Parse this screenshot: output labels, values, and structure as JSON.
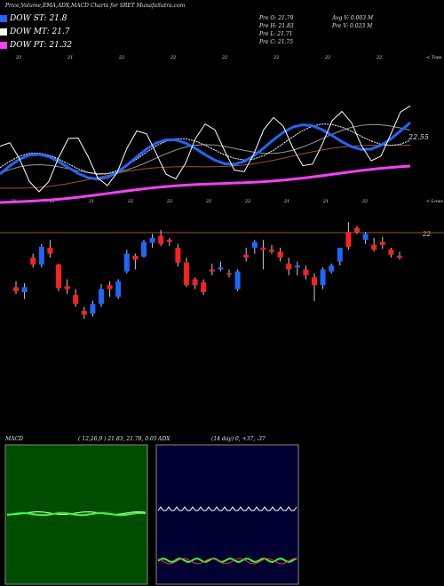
{
  "header": {
    "title": "Price,Volume,EMA,ADX,MACD Charts for SRET MunafaSutra.com"
  },
  "legend": [
    {
      "label": "DOW ST: 21.8",
      "color": "#1f66ff"
    },
    {
      "label": "DOW MT: 21.7",
      "color": "#ffffff"
    },
    {
      "label": "DOW PT: 21.32",
      "color": "#ff3cff"
    }
  ],
  "ohlc": {
    "open": "Pre  O: 21.79",
    "high": "Pre  H: 21.83",
    "low": "Pre  L: 21.71",
    "close": "Pre  C: 21.75",
    "avg_volume": "Avg V: 0.003 M",
    "pre_volume": "Pre  V: 0.023 M"
  },
  "tags": {
    "tops": "< Tops",
    "lows": "< Lows",
    "last_price": "22.55",
    "ref_level": "22",
    "top_marks": [
      "22",
      "21",
      "22",
      "22",
      "22",
      "22",
      "22",
      "22"
    ],
    "low_marks": [
      "21",
      "21",
      "21",
      "22",
      "22",
      "22",
      "22",
      "21",
      "21",
      "22"
    ]
  },
  "macd": {
    "label": "MACD",
    "params": "( 12,26,9 ) 21.83,  21.78,  0.05"
  },
  "adx": {
    "label": "ADX",
    "params": "(14  day) 0,  +37,  -37"
  },
  "colors": {
    "up": "#1f66ff",
    "down": "#ff2020",
    "ema_white": "#ffffff",
    "ema_gray": "#9a9a9a",
    "ema_brown": "#a0522d",
    "ema_purple": "#ff3cff",
    "ref_line": "#8b5a2b",
    "macd_bg": "#004d00",
    "adx_bg": "#000033"
  },
  "chart_data": {
    "type": "line",
    "title": "Price,Volume,EMA,ADX,MACD Charts for SRET MunafaSutra.com",
    "ylabel": "",
    "candles": [
      {
        "o": 21.32,
        "h": 21.38,
        "l": 21.25,
        "c": 21.28,
        "up": false
      },
      {
        "o": 21.27,
        "h": 21.36,
        "l": 21.2,
        "c": 21.32,
        "up": true
      },
      {
        "o": 21.62,
        "h": 21.66,
        "l": 21.52,
        "c": 21.55,
        "up": false
      },
      {
        "o": 21.55,
        "h": 21.76,
        "l": 21.52,
        "c": 21.73,
        "up": true
      },
      {
        "o": 21.72,
        "h": 21.8,
        "l": 21.62,
        "c": 21.66,
        "up": false
      },
      {
        "o": 21.55,
        "h": 21.56,
        "l": 21.28,
        "c": 21.31,
        "up": false
      },
      {
        "o": 21.33,
        "h": 21.4,
        "l": 21.25,
        "c": 21.3,
        "up": false
      },
      {
        "o": 21.24,
        "h": 21.3,
        "l": 21.12,
        "c": 21.15,
        "up": false
      },
      {
        "o": 21.08,
        "h": 21.12,
        "l": 21.0,
        "c": 21.04,
        "up": false
      },
      {
        "o": 21.05,
        "h": 21.18,
        "l": 21.02,
        "c": 21.15,
        "up": true
      },
      {
        "o": 21.15,
        "h": 21.35,
        "l": 21.12,
        "c": 21.3,
        "up": true
      },
      {
        "o": 21.3,
        "h": 21.38,
        "l": 21.22,
        "c": 21.34,
        "up": false
      },
      {
        "o": 21.22,
        "h": 21.4,
        "l": 21.2,
        "c": 21.38,
        "up": true
      },
      {
        "o": 21.48,
        "h": 21.7,
        "l": 21.46,
        "c": 21.66,
        "up": true
      },
      {
        "o": 21.6,
        "h": 21.66,
        "l": 21.5,
        "c": 21.64,
        "up": false
      },
      {
        "o": 21.63,
        "h": 21.8,
        "l": 21.62,
        "c": 21.78,
        "up": true
      },
      {
        "o": 21.77,
        "h": 21.86,
        "l": 21.72,
        "c": 21.82,
        "up": true
      },
      {
        "o": 21.84,
        "h": 21.9,
        "l": 21.74,
        "c": 21.76,
        "up": false
      },
      {
        "o": 21.78,
        "h": 21.82,
        "l": 21.74,
        "c": 21.8,
        "up": false
      },
      {
        "o": 21.72,
        "h": 21.76,
        "l": 21.53,
        "c": 21.57,
        "up": false
      },
      {
        "o": 21.57,
        "h": 21.62,
        "l": 21.32,
        "c": 21.34,
        "up": false
      },
      {
        "o": 21.34,
        "h": 21.42,
        "l": 21.3,
        "c": 21.4,
        "up": false
      },
      {
        "o": 21.37,
        "h": 21.4,
        "l": 21.24,
        "c": 21.27,
        "up": false
      },
      {
        "o": 21.48,
        "h": 21.56,
        "l": 21.44,
        "c": 21.5,
        "up": false
      },
      {
        "o": 21.5,
        "h": 21.58,
        "l": 21.48,
        "c": 21.52,
        "up": true
      },
      {
        "o": 21.46,
        "h": 21.5,
        "l": 21.42,
        "c": 21.46,
        "up": false
      },
      {
        "o": 21.3,
        "h": 21.5,
        "l": 21.28,
        "c": 21.48,
        "up": true
      },
      {
        "o": 21.65,
        "h": 21.72,
        "l": 21.58,
        "c": 21.62,
        "up": false
      },
      {
        "o": 21.72,
        "h": 21.8,
        "l": 21.66,
        "c": 21.78,
        "up": true
      },
      {
        "o": 21.7,
        "h": 21.8,
        "l": 21.5,
        "c": 21.72,
        "up": false
      },
      {
        "o": 21.7,
        "h": 21.75,
        "l": 21.66,
        "c": 21.68,
        "up": false
      },
      {
        "o": 21.68,
        "h": 21.72,
        "l": 21.58,
        "c": 21.62,
        "up": false
      },
      {
        "o": 21.56,
        "h": 21.62,
        "l": 21.44,
        "c": 21.5,
        "up": false
      },
      {
        "o": 21.54,
        "h": 21.58,
        "l": 21.44,
        "c": 21.52,
        "up": true
      },
      {
        "o": 21.5,
        "h": 21.54,
        "l": 21.4,
        "c": 21.44,
        "up": false
      },
      {
        "o": 21.42,
        "h": 21.46,
        "l": 21.18,
        "c": 21.34,
        "up": false
      },
      {
        "o": 21.34,
        "h": 21.52,
        "l": 21.3,
        "c": 21.5,
        "up": true
      },
      {
        "o": 21.48,
        "h": 21.56,
        "l": 21.46,
        "c": 21.54,
        "up": true
      },
      {
        "o": 21.58,
        "h": 21.72,
        "l": 21.54,
        "c": 21.72,
        "up": true
      },
      {
        "o": 21.88,
        "h": 21.98,
        "l": 21.7,
        "c": 21.73,
        "up": false
      },
      {
        "o": 21.92,
        "h": 21.94,
        "l": 21.86,
        "c": 21.88,
        "up": false
      },
      {
        "o": 21.8,
        "h": 21.88,
        "l": 21.76,
        "c": 21.86,
        "up": true
      },
      {
        "o": 21.75,
        "h": 21.82,
        "l": 21.68,
        "c": 21.7,
        "up": false
      },
      {
        "o": 21.78,
        "h": 21.83,
        "l": 21.71,
        "c": 21.75,
        "up": false
      },
      {
        "o": 21.7,
        "h": 21.72,
        "l": 21.62,
        "c": 21.65,
        "up": false
      },
      {
        "o": 21.64,
        "h": 21.68,
        "l": 21.6,
        "c": 21.62,
        "up": false
      }
    ]
  }
}
